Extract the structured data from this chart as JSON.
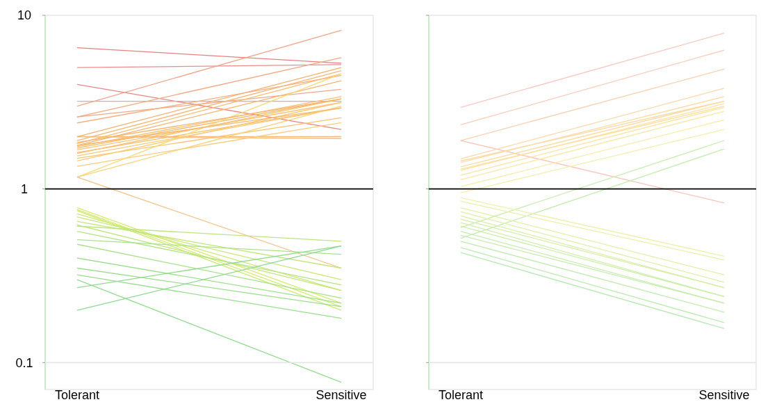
{
  "chart_data": [
    {
      "type": "line",
      "categories": [
        "Tolerant",
        "Sensitive"
      ],
      "log": "y",
      "ylim": [
        0.07,
        10
      ],
      "yticks": [
        0.1,
        1,
        10
      ],
      "ref_lines": [
        {
          "axis": "y",
          "value": 1,
          "color": "#000000"
        },
        {
          "axis": "y",
          "value": 0.1,
          "color": "#e6e6e6"
        }
      ],
      "series": [
        {
          "color": "#e88080",
          "values": [
            6.5,
            5.3
          ]
        },
        {
          "color": "#ec8c8c",
          "values": [
            5.0,
            5.2
          ]
        },
        {
          "color": "#e88585",
          "values": [
            4.0,
            2.2
          ]
        },
        {
          "color": "#f2a58a",
          "values": [
            3.0,
            8.2
          ]
        },
        {
          "color": "#f0a0a0",
          "values": [
            3.2,
            3.2
          ]
        },
        {
          "color": "#f2a880",
          "values": [
            2.6,
            5.7
          ]
        },
        {
          "color": "#f0a888",
          "values": [
            2.6,
            3.75
          ]
        },
        {
          "color": "#f4b080",
          "values": [
            2.4,
            4.5
          ]
        },
        {
          "color": "#f6b87a",
          "values": [
            2.0,
            2.0
          ]
        },
        {
          "color": "#f6c080",
          "values": [
            2.0,
            1.95
          ]
        },
        {
          "color": "#f5b070",
          "values": [
            2.0,
            5.0
          ]
        },
        {
          "color": "#f6b872",
          "values": [
            1.9,
            4.8
          ]
        },
        {
          "color": "#f7bc70",
          "values": [
            1.82,
            4.6
          ]
        },
        {
          "color": "#f5b46e",
          "values": [
            1.78,
            4.2
          ]
        },
        {
          "color": "#f7c070",
          "values": [
            1.75,
            3.4
          ]
        },
        {
          "color": "#f6b86a",
          "values": [
            1.72,
            3.3
          ]
        },
        {
          "color": "#f8c474",
          "values": [
            1.68,
            3.15
          ]
        },
        {
          "color": "#f7bc6c",
          "values": [
            1.62,
            2.93
          ]
        },
        {
          "color": "#f8c070",
          "values": [
            1.6,
            3.3
          ]
        },
        {
          "color": "#f9c878",
          "values": [
            1.55,
            2.93
          ]
        },
        {
          "color": "#f8c470",
          "values": [
            1.5,
            2.57
          ]
        },
        {
          "color": "#f9cc74",
          "values": [
            1.45,
            3.15
          ]
        },
        {
          "color": "#f9cc7a",
          "values": [
            1.35,
            2.41
          ]
        },
        {
          "color": "#fad27a",
          "values": [
            1.17,
            3.0
          ]
        },
        {
          "color": "#fad87a",
          "values": [
            1.17,
            4.6
          ]
        },
        {
          "color": "#f6b86a",
          "values": [
            1.78,
            2.93
          ]
        },
        {
          "color": "#f6b46c",
          "values": [
            1.85,
            3.3
          ]
        },
        {
          "color": "#f5c080",
          "values": [
            1.17,
            0.35
          ]
        },
        {
          "color": "#d8ec70",
          "values": [
            0.78,
            0.22
          ]
        },
        {
          "color": "#d4ea70",
          "values": [
            0.76,
            0.21
          ]
        },
        {
          "color": "#d0ea70",
          "values": [
            0.75,
            0.2
          ]
        },
        {
          "color": "#cce874",
          "values": [
            0.72,
            0.26
          ]
        },
        {
          "color": "#c8e874",
          "values": [
            0.69,
            0.3
          ]
        },
        {
          "color": "#c4e678",
          "values": [
            0.65,
            0.35
          ]
        },
        {
          "color": "#bce67c",
          "values": [
            0.61,
            0.5
          ]
        },
        {
          "color": "#c0e678",
          "values": [
            0.62,
            0.26
          ]
        },
        {
          "color": "#b4e480",
          "values": [
            0.57,
            0.28
          ]
        },
        {
          "color": "#acE284",
          "values": [
            0.51,
            0.42
          ]
        },
        {
          "color": "#a8e288",
          "values": [
            0.48,
            0.235
          ]
        },
        {
          "color": "#a0e08a",
          "values": [
            0.4,
            0.22
          ]
        },
        {
          "color": "#9cde8c",
          "values": [
            0.35,
            0.21
          ]
        },
        {
          "color": "#98de8e",
          "values": [
            0.32,
            0.18
          ]
        },
        {
          "color": "#94dc90",
          "values": [
            0.3,
            0.077
          ]
        },
        {
          "color": "#90dc90",
          "values": [
            0.27,
            0.47
          ]
        },
        {
          "color": "#8cda90",
          "values": [
            0.2,
            0.47
          ]
        }
      ]
    },
    {
      "type": "line",
      "categories": [
        "Tolerant",
        "Sensitive"
      ],
      "log": "y",
      "ylim": [
        0.07,
        10
      ],
      "yticks": [
        0.1,
        1,
        10
      ],
      "tick_labels": "x",
      "ref_lines": [
        {
          "axis": "y",
          "value": 1,
          "color": "#000000"
        },
        {
          "axis": "y",
          "value": 0.1,
          "color": "#e6e6e6"
        }
      ],
      "series": [
        {
          "color": "#f6c8c0",
          "values": [
            2.95,
            7.9
          ]
        },
        {
          "color": "#f7ccb8",
          "values": [
            2.34,
            6.3
          ]
        },
        {
          "color": "#f8d0b0",
          "values": [
            1.9,
            4.9
          ]
        },
        {
          "color": "#f6c4b8",
          "values": [
            1.9,
            0.83
          ]
        },
        {
          "color": "#fad8a8",
          "values": [
            1.49,
            3.8
          ]
        },
        {
          "color": "#fad8a0",
          "values": [
            1.45,
            3.2
          ]
        },
        {
          "color": "#fbdca0",
          "values": [
            1.42,
            3.4
          ]
        },
        {
          "color": "#fbdca0",
          "values": [
            1.34,
            3.2
          ]
        },
        {
          "color": "#fbe0a0",
          "values": [
            1.3,
            3.0
          ]
        },
        {
          "color": "#fbe0a0",
          "values": [
            1.28,
            3.1
          ]
        },
        {
          "color": "#fbe4a0",
          "values": [
            1.2,
            2.95
          ]
        },
        {
          "color": "#fbe8a4",
          "values": [
            1.13,
            2.8
          ]
        },
        {
          "color": "#f8eca4",
          "values": [
            1.03,
            2.5
          ]
        },
        {
          "color": "#f4eea8",
          "values": [
            0.95,
            2.2
          ]
        },
        {
          "color": "#c4ecb0",
          "values": [
            0.52,
            1.7
          ]
        },
        {
          "color": "#c8eeb0",
          "values": [
            0.6,
            1.9
          ]
        },
        {
          "color": "#f0f0a8",
          "values": [
            0.89,
            0.41
          ]
        },
        {
          "color": "#eaf0a8",
          "values": [
            0.85,
            0.39
          ]
        },
        {
          "color": "#e2f0a4",
          "values": [
            0.78,
            0.32
          ]
        },
        {
          "color": "#dcf0a4",
          "values": [
            0.74,
            0.29
          ]
        },
        {
          "color": "#d8eea4",
          "values": [
            0.7,
            0.27
          ]
        },
        {
          "color": "#d4eea4",
          "values": [
            0.67,
            0.27
          ]
        },
        {
          "color": "#d0eea8",
          "values": [
            0.64,
            0.24
          ]
        },
        {
          "color": "#cceea8",
          "values": [
            0.61,
            0.24
          ]
        },
        {
          "color": "#c8ecac",
          "values": [
            0.57,
            0.22
          ]
        },
        {
          "color": "#c4ecac",
          "values": [
            0.54,
            0.22
          ]
        },
        {
          "color": "#c0eab0",
          "values": [
            0.5,
            0.195
          ]
        },
        {
          "color": "#bceab0",
          "values": [
            0.46,
            0.17
          ]
        },
        {
          "color": "#b8e8b4",
          "values": [
            0.43,
            0.157
          ]
        }
      ]
    }
  ]
}
